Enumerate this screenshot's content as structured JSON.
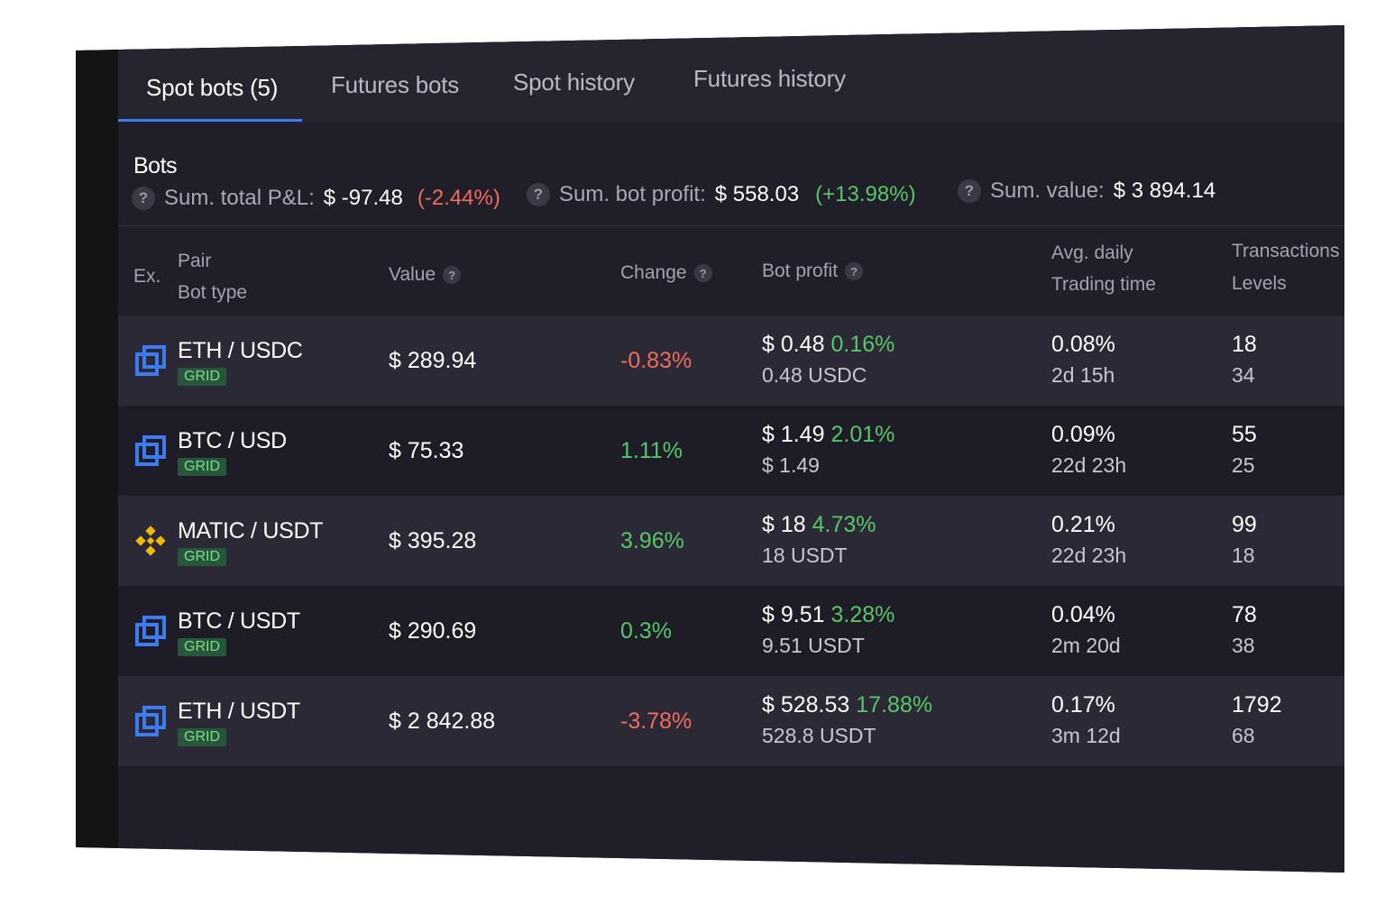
{
  "tabs": [
    {
      "label": "Spot bots (5)",
      "active": true
    },
    {
      "label": "Futures bots",
      "active": false
    },
    {
      "label": "Spot history",
      "active": false
    },
    {
      "label": "Futures history",
      "active": false
    }
  ],
  "section_title": "Bots",
  "summary": {
    "pnl_label": "Sum. total P&L:",
    "pnl_value": "$ -97.48",
    "pnl_pct": "(-2.44%)",
    "profit_label": "Sum. bot profit:",
    "profit_value": "$ 558.03",
    "profit_pct": "(+13.98%)",
    "value_label": "Sum. value:",
    "value_value": "$ 3 894.14",
    "help_glyph": "?"
  },
  "columns": {
    "ex": "Ex.",
    "pair": "Pair",
    "bot_type": "Bot type",
    "value": "Value",
    "change": "Change",
    "bot_profit": "Bot profit",
    "avg_daily": "Avg. daily",
    "trading_time": "Trading time",
    "transactions": "Transactions",
    "levels": "Levels"
  },
  "rows": [
    {
      "exchange_icon": "exchange-stack-icon",
      "pair": "ETH / USDC",
      "type": "GRID",
      "value": "$ 289.94",
      "change": "-0.83%",
      "change_dir": "neg",
      "profit": "$ 0.48",
      "profit_pct": "0.16%",
      "profit_sub": "0.48 USDC",
      "avg": "0.08%",
      "time": "2d 15h",
      "tx": "18",
      "levels": "34"
    },
    {
      "exchange_icon": "exchange-stack-icon",
      "pair": "BTC / USD",
      "type": "GRID",
      "value": "$ 75.33",
      "change": "1.11%",
      "change_dir": "pos",
      "profit": "$ 1.49",
      "profit_pct": "2.01%",
      "profit_sub": "$ 1.49",
      "avg": "0.09%",
      "time": "22d 23h",
      "tx": "55",
      "levels": "25"
    },
    {
      "exchange_icon": "binance-icon",
      "pair": "MATIC / USDT",
      "type": "GRID",
      "value": "$ 395.28",
      "change": "3.96%",
      "change_dir": "pos",
      "profit": "$ 18",
      "profit_pct": "4.73%",
      "profit_sub": "18 USDT",
      "avg": "0.21%",
      "time": "22d 23h",
      "tx": "99",
      "levels": "18"
    },
    {
      "exchange_icon": "exchange-stack-icon",
      "pair": "BTC / USDT",
      "type": "GRID",
      "value": "$ 290.69",
      "change": "0.3%",
      "change_dir": "pos",
      "profit": "$ 9.51",
      "profit_pct": "3.28%",
      "profit_sub": "9.51 USDT",
      "avg": "0.04%",
      "time": "2m 20d",
      "tx": "78",
      "levels": "38"
    },
    {
      "exchange_icon": "exchange-stack-icon",
      "pair": "ETH / USDT",
      "type": "GRID",
      "value": "$ 2 842.88",
      "change": "-3.78%",
      "change_dir": "neg",
      "profit": "$ 528.53",
      "profit_pct": "17.88%",
      "profit_sub": "528.8 USDT",
      "avg": "0.17%",
      "time": "3m 12d",
      "tx": "1792",
      "levels": "68"
    }
  ],
  "colors": {
    "accent": "#3d7bf0",
    "positive": "#57c667",
    "negative": "#f06b5b",
    "binance": "#f0b90b"
  }
}
